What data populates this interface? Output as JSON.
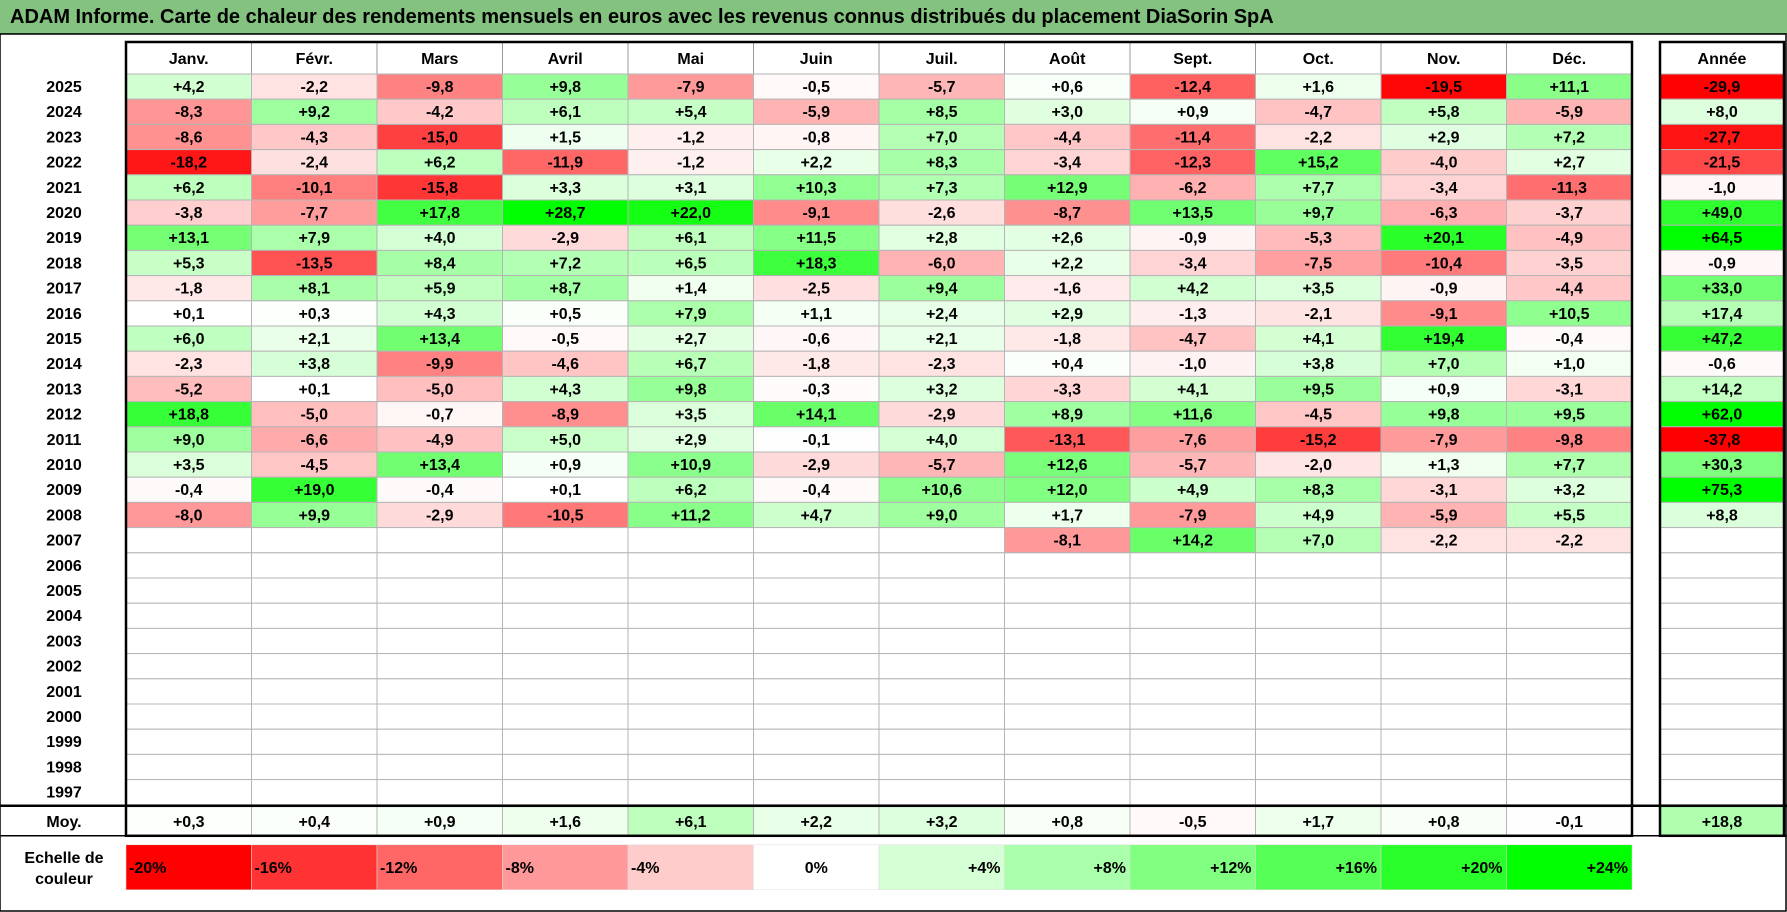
{
  "title": "ADAM Informe. Carte de chaleur des rendements mensuels en euros avec les revenus connus distribués du placement DiaSorin SpA",
  "chart_data": {
    "type": "heatmap",
    "columns": [
      "Janv.",
      "Févr.",
      "Mars",
      "Avril",
      "Mai",
      "Juin",
      "Juil.",
      "Août",
      "Sept.",
      "Oct.",
      "Nov.",
      "Déc."
    ],
    "year_header": "Année",
    "rows": [
      {
        "year": "2025",
        "values": [
          "+4,2",
          "-2,2",
          "-9,8",
          "+9,8",
          "-7,9",
          "-0,5",
          "-5,7",
          "+0,6",
          "-12,4",
          "+1,6",
          "-19,5",
          "+11,1"
        ],
        "annual": "-29,9"
      },
      {
        "year": "2024",
        "values": [
          "-8,3",
          "+9,2",
          "-4,2",
          "+6,1",
          "+5,4",
          "-5,9",
          "+8,5",
          "+3,0",
          "+0,9",
          "-4,7",
          "+5,8",
          "-5,9"
        ],
        "annual": "+8,0"
      },
      {
        "year": "2023",
        "values": [
          "-8,6",
          "-4,3",
          "-15,0",
          "+1,5",
          "-1,2",
          "-0,8",
          "+7,0",
          "-4,4",
          "-11,4",
          "-2,2",
          "+2,9",
          "+7,2"
        ],
        "annual": "-27,7"
      },
      {
        "year": "2022",
        "values": [
          "-18,2",
          "-2,4",
          "+6,2",
          "-11,9",
          "-1,2",
          "+2,2",
          "+8,3",
          "-3,4",
          "-12,3",
          "+15,2",
          "-4,0",
          "+2,7"
        ],
        "annual": "-21,5"
      },
      {
        "year": "2021",
        "values": [
          "+6,2",
          "-10,1",
          "-15,8",
          "+3,3",
          "+3,1",
          "+10,3",
          "+7,3",
          "+12,9",
          "-6,2",
          "+7,7",
          "-3,4",
          "-11,3"
        ],
        "annual": "-1,0"
      },
      {
        "year": "2020",
        "values": [
          "-3,8",
          "-7,7",
          "+17,8",
          "+28,7",
          "+22,0",
          "-9,1",
          "-2,6",
          "-8,7",
          "+13,5",
          "+9,7",
          "-6,3",
          "-3,7"
        ],
        "annual": "+49,0"
      },
      {
        "year": "2019",
        "values": [
          "+13,1",
          "+7,9",
          "+4,0",
          "-2,9",
          "+6,1",
          "+11,5",
          "+2,8",
          "+2,6",
          "-0,9",
          "-5,3",
          "+20,1",
          "-4,9"
        ],
        "annual": "+64,5"
      },
      {
        "year": "2018",
        "values": [
          "+5,3",
          "-13,5",
          "+8,4",
          "+7,2",
          "+6,5",
          "+18,3",
          "-6,0",
          "+2,2",
          "-3,4",
          "-7,5",
          "-10,4",
          "-3,5"
        ],
        "annual": "-0,9"
      },
      {
        "year": "2017",
        "values": [
          "-1,8",
          "+8,1",
          "+5,9",
          "+8,7",
          "+1,4",
          "-2,5",
          "+9,4",
          "-1,6",
          "+4,2",
          "+3,5",
          "-0,9",
          "-4,4"
        ],
        "annual": "+33,0"
      },
      {
        "year": "2016",
        "values": [
          "+0,1",
          "+0,3",
          "+4,3",
          "+0,5",
          "+7,9",
          "+1,1",
          "+2,4",
          "+2,9",
          "-1,3",
          "-2,1",
          "-9,1",
          "+10,5"
        ],
        "annual": "+17,4"
      },
      {
        "year": "2015",
        "values": [
          "+6,0",
          "+2,1",
          "+13,4",
          "-0,5",
          "+2,7",
          "-0,6",
          "+2,1",
          "-1,8",
          "-4,7",
          "+4,1",
          "+19,4",
          "-0,4"
        ],
        "annual": "+47,2"
      },
      {
        "year": "2014",
        "values": [
          "-2,3",
          "+3,8",
          "-9,9",
          "-4,6",
          "+6,7",
          "-1,8",
          "-2,3",
          "+0,4",
          "-1,0",
          "+3,8",
          "+7,0",
          "+1,0"
        ],
        "annual": "-0,6"
      },
      {
        "year": "2013",
        "values": [
          "-5,2",
          "+0,1",
          "-5,0",
          "+4,3",
          "+9,8",
          "-0,3",
          "+3,2",
          "-3,3",
          "+4,1",
          "+9,5",
          "+0,9",
          "-3,1"
        ],
        "annual": "+14,2"
      },
      {
        "year": "2012",
        "values": [
          "+18,8",
          "-5,0",
          "-0,7",
          "-8,9",
          "+3,5",
          "+14,1",
          "-2,9",
          "+8,9",
          "+11,6",
          "-4,5",
          "+9,8",
          "+9,5"
        ],
        "annual": "+62,0"
      },
      {
        "year": "2011",
        "values": [
          "+9,0",
          "-6,6",
          "-4,9",
          "+5,0",
          "+2,9",
          "-0,1",
          "+4,0",
          "-13,1",
          "-7,6",
          "-15,2",
          "-7,9",
          "-9,8"
        ],
        "annual": "-37,8"
      },
      {
        "year": "2010",
        "values": [
          "+3,5",
          "-4,5",
          "+13,4",
          "+0,9",
          "+10,9",
          "-2,9",
          "-5,7",
          "+12,6",
          "-5,7",
          "-2,0",
          "+1,3",
          "+7,7"
        ],
        "annual": "+30,3"
      },
      {
        "year": "2009",
        "values": [
          "-0,4",
          "+19,0",
          "-0,4",
          "+0,1",
          "+6,2",
          "-0,4",
          "+10,6",
          "+12,0",
          "+4,9",
          "+8,3",
          "-3,1",
          "+3,2"
        ],
        "annual": "+75,3"
      },
      {
        "year": "2008",
        "values": [
          "-8,0",
          "+9,9",
          "-2,9",
          "-10,5",
          "+11,2",
          "+4,7",
          "+9,0",
          "+1,7",
          "-7,9",
          "+4,9",
          "-5,9",
          "+5,5"
        ],
        "annual": "+8,8"
      },
      {
        "year": "2007",
        "values": [
          "",
          "",
          "",
          "",
          "",
          "",
          "",
          "-8,1",
          "+14,2",
          "+7,0",
          "-2,2",
          "-2,2"
        ],
        "annual": ""
      },
      {
        "year": "2006",
        "values": [
          "",
          "",
          "",
          "",
          "",
          "",
          "",
          "",
          "",
          "",
          "",
          ""
        ],
        "annual": ""
      },
      {
        "year": "2005",
        "values": [
          "",
          "",
          "",
          "",
          "",
          "",
          "",
          "",
          "",
          "",
          "",
          ""
        ],
        "annual": ""
      },
      {
        "year": "2004",
        "values": [
          "",
          "",
          "",
          "",
          "",
          "",
          "",
          "",
          "",
          "",
          "",
          ""
        ],
        "annual": ""
      },
      {
        "year": "2003",
        "values": [
          "",
          "",
          "",
          "",
          "",
          "",
          "",
          "",
          "",
          "",
          "",
          ""
        ],
        "annual": ""
      },
      {
        "year": "2002",
        "values": [
          "",
          "",
          "",
          "",
          "",
          "",
          "",
          "",
          "",
          "",
          "",
          ""
        ],
        "annual": ""
      },
      {
        "year": "2001",
        "values": [
          "",
          "",
          "",
          "",
          "",
          "",
          "",
          "",
          "",
          "",
          "",
          ""
        ],
        "annual": ""
      },
      {
        "year": "2000",
        "values": [
          "",
          "",
          "",
          "",
          "",
          "",
          "",
          "",
          "",
          "",
          "",
          ""
        ],
        "annual": ""
      },
      {
        "year": "1999",
        "values": [
          "",
          "",
          "",
          "",
          "",
          "",
          "",
          "",
          "",
          "",
          "",
          ""
        ],
        "annual": ""
      },
      {
        "year": "1998",
        "values": [
          "",
          "",
          "",
          "",
          "",
          "",
          "",
          "",
          "",
          "",
          "",
          ""
        ],
        "annual": ""
      },
      {
        "year": "1997",
        "values": [
          "",
          "",
          "",
          "",
          "",
          "",
          "",
          "",
          "",
          "",
          "",
          ""
        ],
        "annual": ""
      }
    ],
    "average": {
      "label": "Moy.",
      "values": [
        "+0,3",
        "+0,4",
        "+0,9",
        "+1,6",
        "+6,1",
        "+2,2",
        "+3,2",
        "+0,8",
        "-0,5",
        "+1,7",
        "+0,8",
        "-0,1"
      ],
      "annual": "+18,8"
    },
    "color_scale": {
      "label_line1": "Echelle de",
      "label_line2": "couleur",
      "steps": [
        "-20%",
        "-16%",
        "-12%",
        "-8%",
        "-4%",
        "0%",
        "+4%",
        "+8%",
        "+12%",
        "+16%",
        "+20%",
        "+24%"
      ],
      "step_values": [
        -20,
        -16,
        -12,
        -8,
        -4,
        0,
        4,
        8,
        12,
        16,
        20,
        24
      ]
    },
    "colors": {
      "negative": "#ff0000",
      "positive": "#00ff00",
      "neutral": "#ffffff"
    }
  }
}
